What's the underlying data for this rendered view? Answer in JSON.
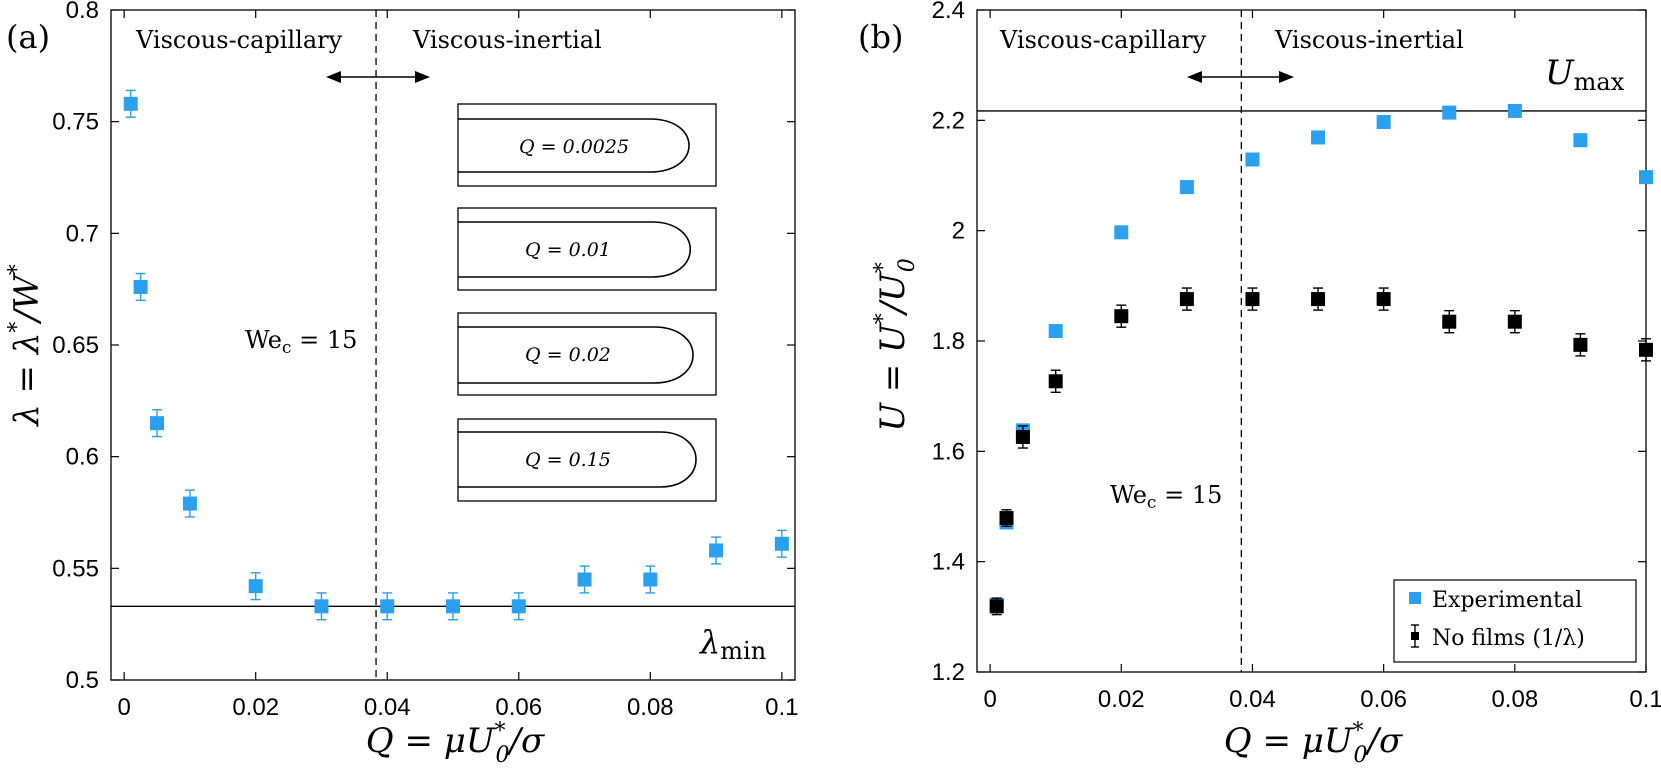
{
  "chart_data": [
    {
      "type": "scatter",
      "panel_label": "(a)",
      "xlim": [
        -0.002,
        0.102
      ],
      "ylim": [
        0.5,
        0.8
      ],
      "xticks": [
        0,
        0.02,
        0.04,
        0.06,
        0.08,
        0.1
      ],
      "xtick_labels": [
        "0",
        "0.02",
        "0.04",
        "0.06",
        "0.08",
        "0.1"
      ],
      "yticks": [
        0.5,
        0.55,
        0.6,
        0.65,
        0.7,
        0.75,
        0.8
      ],
      "ytick_labels": [
        "0.5",
        "0.55",
        "0.6",
        "0.65",
        "0.7",
        "0.75",
        "0.8"
      ],
      "xlabel": {
        "lhs": "Q",
        "mid": " = μU",
        "sup": "*",
        "sub": "0",
        "rhs": "/σ"
      },
      "ylabel": {
        "lhs": "λ",
        "mid": " = λ",
        "sup1": "*",
        "mid2": "/W",
        "sup2": "*"
      },
      "grid": false,
      "series": [
        {
          "color": "#2aa0ef",
          "marker": "square",
          "x": [
            0.001,
            0.0025,
            0.005,
            0.01,
            0.02,
            0.03,
            0.04,
            0.05,
            0.06,
            0.07,
            0.08,
            0.09,
            0.1
          ],
          "y": [
            0.758,
            0.676,
            0.615,
            0.579,
            0.542,
            0.533,
            0.533,
            0.533,
            0.533,
            0.545,
            0.545,
            0.558,
            0.561
          ],
          "err": [
            0.006,
            0.006,
            0.006,
            0.006,
            0.006,
            0.006,
            0.006,
            0.006,
            0.006,
            0.006,
            0.006,
            0.006,
            0.006
          ]
        }
      ],
      "hline": {
        "y": 0.533,
        "label_main": "λ",
        "label_sub": "min"
      },
      "vline": {
        "x": 0.0383,
        "label_main": "We",
        "label_sub": "c",
        "label_rest": " = 15"
      },
      "regions": {
        "left": "Viscous-capillary",
        "right": "Viscous-inertial"
      },
      "insets": [
        {
          "label": "Q = 0.0025"
        },
        {
          "label": "Q = 0.01"
        },
        {
          "label": "Q = 0.02"
        },
        {
          "label": "Q = 0.15"
        }
      ]
    },
    {
      "type": "scatter",
      "panel_label": "(b)",
      "xlim": [
        -0.002,
        0.1
      ],
      "ylim": [
        1.2,
        2.4
      ],
      "xticks": [
        0,
        0.02,
        0.04,
        0.06,
        0.08,
        0.1
      ],
      "xtick_labels": [
        "0",
        "0.02",
        "0.04",
        "0.06",
        "0.08",
        "0.1"
      ],
      "yticks": [
        1.2,
        1.4,
        1.6,
        1.8,
        2.0,
        2.2,
        2.4
      ],
      "ytick_labels": [
        "1.2",
        "1.4",
        "1.6",
        "1.8",
        "2",
        "2.2",
        "2.4"
      ],
      "xlabel": {
        "lhs": "Q",
        "mid": " = μU",
        "sup": "*",
        "sub": "0",
        "rhs": "/σ"
      },
      "ylabel": {
        "lhs": "U",
        "mid": " = U",
        "sup1": "*",
        "mid2": "/U",
        "sup2": "*",
        "sub2": "0"
      },
      "grid": false,
      "legend_position": "bottom-right",
      "series": [
        {
          "name": "Experimental",
          "color": "#2aa0ef",
          "marker": "square",
          "x": [
            0.001,
            0.0025,
            0.005,
            0.01,
            0.02,
            0.03,
            0.04,
            0.05,
            0.06,
            0.07,
            0.08,
            0.09,
            0.1
          ],
          "y": [
            1.322,
            1.471,
            1.638,
            1.818,
            1.997,
            2.079,
            2.129,
            2.169,
            2.197,
            2.214,
            2.217,
            2.164,
            2.097
          ]
        },
        {
          "name": "No films (1/λ)",
          "color": "#000000",
          "marker": "square",
          "x": [
            0.001,
            0.0025,
            0.005,
            0.01,
            0.02,
            0.03,
            0.04,
            0.05,
            0.06,
            0.07,
            0.08,
            0.09,
            0.1
          ],
          "y": [
            1.319,
            1.479,
            1.626,
            1.727,
            1.845,
            1.876,
            1.876,
            1.876,
            1.876,
            1.835,
            1.835,
            1.793,
            1.784
          ],
          "err": [
            0.015,
            0.015,
            0.02,
            0.02,
            0.02,
            0.02,
            0.02,
            0.02,
            0.02,
            0.02,
            0.02,
            0.02,
            0.02
          ]
        }
      ],
      "hline": {
        "y": 2.217,
        "label_main": "U",
        "label_sub": "max"
      },
      "vline": {
        "x": 0.0383,
        "label_main": "We",
        "label_sub": "c",
        "label_rest": " = 15"
      },
      "regions": {
        "left": "Viscous-capillary",
        "right": "Viscous-inertial"
      }
    }
  ]
}
